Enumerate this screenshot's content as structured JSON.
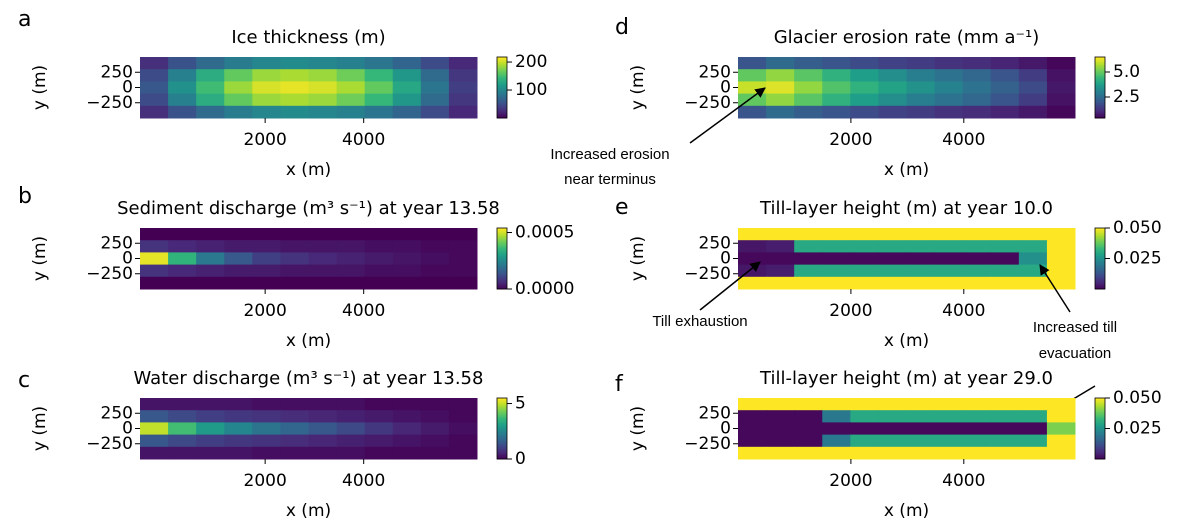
{
  "chart_data": [
    {
      "type": "heatmap",
      "panel_label": "a",
      "title": "Ice thickness (m)",
      "x_label": "x (m)",
      "y_label": "y (m)",
      "colormap": "viridis",
      "xlim": [
        -540,
        6300
      ],
      "xticks": [
        2000,
        4000
      ],
      "ylim": [
        -500,
        500
      ],
      "yticks": [
        250,
        0,
        {
          "value": -250,
          "label": "−250"
        }
      ],
      "values": [
        [
          30,
          55,
          75,
          90,
          100,
          105,
          100,
          95,
          85,
          70,
          50,
          25
        ],
        [
          50,
          95,
          135,
          165,
          185,
          190,
          185,
          170,
          145,
          115,
          75,
          35
        ],
        [
          60,
          110,
          150,
          185,
          205,
          210,
          205,
          190,
          165,
          130,
          85,
          40
        ],
        [
          50,
          95,
          135,
          165,
          185,
          190,
          185,
          170,
          145,
          115,
          75,
          35
        ],
        [
          30,
          55,
          75,
          90,
          100,
          105,
          100,
          95,
          85,
          70,
          50,
          25
        ]
      ],
      "clim": [
        0,
        218
      ],
      "cticks": [
        200,
        100
      ]
    },
    {
      "type": "heatmap",
      "panel_label": "b",
      "title": "Sediment discharge (m³ s⁻¹)  at year 13.58",
      "x_label": "x (m)",
      "y_label": "y (m)",
      "colormap": "viridis",
      "xlim": [
        -540,
        6300
      ],
      "xticks": [
        2000,
        4000
      ],
      "ylim": [
        -500,
        500
      ],
      "yticks": [
        250,
        0,
        {
          "value": -250,
          "label": "−250"
        }
      ],
      "values": [
        [
          0,
          0,
          0,
          0,
          0,
          0,
          0,
          0,
          0,
          0,
          0,
          0
        ],
        [
          8e-05,
          6e-05,
          5e-05,
          4e-05,
          4e-05,
          3e-05,
          3e-05,
          3e-05,
          2e-05,
          2e-05,
          1e-05,
          1e-05
        ],
        [
          0.00052,
          0.00035,
          0.00022,
          0.00015,
          0.0001,
          8e-05,
          6e-05,
          5e-05,
          4e-05,
          3e-05,
          2e-05,
          1e-05
        ],
        [
          8e-05,
          6e-05,
          5e-05,
          4e-05,
          4e-05,
          3e-05,
          3e-05,
          3e-05,
          2e-05,
          2e-05,
          1e-05,
          1e-05
        ],
        [
          0,
          0,
          0,
          0,
          0,
          0,
          0,
          0,
          0,
          0,
          0,
          0
        ]
      ],
      "clim": [
        0,
        0.00054
      ],
      "cticks": [
        0.0005,
        {
          "value": 0,
          "label": "0.0000"
        }
      ]
    },
    {
      "type": "heatmap",
      "panel_label": "c",
      "title": "Water discharge (m³ s⁻¹)  at year 13.58",
      "x_label": "x (m)",
      "y_label": "y (m)",
      "colormap": "viridis",
      "xlim": [
        -540,
        6300
      ],
      "xticks": [
        2000,
        4000
      ],
      "ylim": [
        -500,
        500
      ],
      "yticks": [
        250,
        0,
        {
          "value": -250,
          "label": "−250"
        }
      ],
      "values": [
        [
          0.3,
          0.3,
          0.3,
          0.3,
          0.2,
          0.2,
          0.2,
          0.2,
          0.1,
          0.1,
          0.1,
          0.1
        ],
        [
          1.5,
          1.2,
          1,
          0.9,
          0.8,
          0.7,
          0.6,
          0.5,
          0.4,
          0.3,
          0.2,
          0.1
        ],
        [
          5,
          3.8,
          3,
          2.5,
          2.1,
          1.8,
          1.5,
          1.2,
          0.9,
          0.6,
          0.4,
          0.2
        ],
        [
          1.5,
          1.2,
          1,
          0.9,
          0.8,
          0.7,
          0.6,
          0.5,
          0.4,
          0.3,
          0.2,
          0.1
        ],
        [
          0.3,
          0.3,
          0.3,
          0.3,
          0.2,
          0.2,
          0.2,
          0.2,
          0.1,
          0.1,
          0.1,
          0.1
        ]
      ],
      "clim": [
        0,
        5.5
      ],
      "cticks": [
        5,
        0
      ]
    },
    {
      "type": "heatmap",
      "panel_label": "d",
      "title": "Glacier erosion rate (mm a⁻¹)",
      "x_label": "x (m)",
      "y_label": "y (m)",
      "colormap": "viridis",
      "xlim": [
        0,
        5970
      ],
      "xticks": [
        2000,
        4000
      ],
      "ylim": [
        -500,
        500
      ],
      "yticks": [
        250,
        0,
        {
          "value": -250,
          "label": "−250"
        }
      ],
      "values": [
        [
          2.0,
          2.5,
          2.2,
          2.0,
          1.8,
          1.6,
          1.5,
          1.3,
          1.2,
          1.0,
          0.8,
          0.5
        ],
        [
          5.0,
          5.5,
          4.9,
          4.3,
          3.8,
          3.4,
          3.0,
          2.7,
          2.4,
          2.0,
          1.5,
          0.7
        ],
        [
          6.0,
          6.2,
          5.5,
          4.8,
          4.3,
          3.9,
          3.5,
          3.1,
          2.7,
          2.3,
          1.8,
          0.8
        ],
        [
          5.0,
          5.5,
          4.9,
          4.3,
          3.8,
          3.4,
          3.0,
          2.7,
          2.4,
          2.0,
          1.5,
          0.7
        ],
        [
          2.0,
          2.5,
          2.2,
          2.0,
          1.8,
          1.6,
          1.5,
          1.3,
          1.2,
          1.0,
          0.8,
          0.5
        ]
      ],
      "clim": [
        0.4,
        6.5
      ],
      "cticks": [
        {
          "value": 5,
          "label": "5.0"
        },
        2.5
      ],
      "annotations": [
        [
          "Increased erosion",
          "near terminus"
        ]
      ]
    },
    {
      "type": "heatmap",
      "panel_label": "e",
      "title": "Till-layer height (m) at year 10.0",
      "x_label": "x (m)",
      "y_label": "y (m)",
      "colormap": "viridis",
      "xlim": [
        0,
        5970
      ],
      "xticks": [
        2000,
        4000
      ],
      "ylim": [
        -500,
        500
      ],
      "yticks": [
        250,
        0,
        {
          "value": -250,
          "label": "−250"
        }
      ],
      "values": [
        [
          0.05,
          0.05,
          0.05,
          0.05,
          0.05,
          0.05,
          0.05,
          0.05,
          0.05,
          0.05,
          0.05,
          0.05
        ],
        [
          0.003,
          0.004,
          0.03,
          0.03,
          0.03,
          0.03,
          0.03,
          0.03,
          0.03,
          0.03,
          0.03,
          0.05
        ],
        [
          0.001,
          0.001,
          0.001,
          0.001,
          0.001,
          0.001,
          0.001,
          0.001,
          0.001,
          0.001,
          0.025,
          0.05
        ],
        [
          0.003,
          0.004,
          0.03,
          0.03,
          0.03,
          0.03,
          0.03,
          0.03,
          0.03,
          0.03,
          0.03,
          0.05
        ],
        [
          0.05,
          0.05,
          0.05,
          0.05,
          0.05,
          0.05,
          0.05,
          0.05,
          0.05,
          0.05,
          0.05,
          0.05
        ]
      ],
      "clim": [
        0,
        0.05
      ],
      "cticks": [
        {
          "value": 0.05,
          "label": "0.050"
        },
        0.025
      ],
      "annotations": [
        [
          "Till exhaustion"
        ],
        [
          "Increased till",
          "evacuation"
        ]
      ]
    },
    {
      "type": "heatmap",
      "panel_label": "f",
      "title": "Till-layer height (m) at year 29.0",
      "x_label": "x (m)",
      "y_label": "y (m)",
      "colormap": "viridis",
      "xlim": [
        0,
        5970
      ],
      "xticks": [
        2000,
        4000
      ],
      "ylim": [
        -500,
        500
      ],
      "yticks": [
        250,
        0,
        {
          "value": -250,
          "label": "−250"
        }
      ],
      "values": [
        [
          0.05,
          0.05,
          0.05,
          0.05,
          0.05,
          0.05,
          0.05,
          0.05,
          0.05,
          0.05,
          0.05,
          0.05
        ],
        [
          0.001,
          0.001,
          0.001,
          0.02,
          0.03,
          0.03,
          0.03,
          0.03,
          0.03,
          0.03,
          0.03,
          0.05
        ],
        [
          0.001,
          0.001,
          0.001,
          0.001,
          0.001,
          0.001,
          0.001,
          0.001,
          0.001,
          0.001,
          0.001,
          0.04
        ],
        [
          0.001,
          0.001,
          0.001,
          0.02,
          0.03,
          0.03,
          0.03,
          0.03,
          0.03,
          0.03,
          0.03,
          0.05
        ],
        [
          0.05,
          0.05,
          0.05,
          0.05,
          0.05,
          0.05,
          0.05,
          0.05,
          0.05,
          0.05,
          0.05,
          0.05
        ]
      ],
      "clim": [
        0,
        0.05
      ],
      "cticks": [
        {
          "value": 0.05,
          "label": "0.050"
        },
        0.025
      ]
    }
  ]
}
